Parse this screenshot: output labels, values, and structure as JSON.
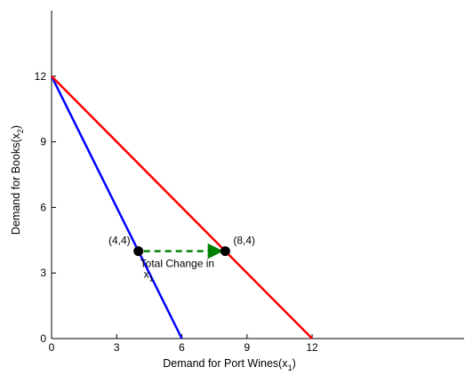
{
  "chart_data": {
    "type": "line",
    "xlabel": "Demand for Port Wines(x",
    "xlabel_sub": "1",
    "xlabel_end": ")",
    "ylabel": "Demand for Books(x",
    "ylabel_sub": "2",
    "ylabel_end": ")",
    "xlim": [
      0,
      19
    ],
    "ylim": [
      0,
      15
    ],
    "xticks": [
      0,
      3,
      6,
      9,
      12
    ],
    "yticks": [
      0,
      3,
      6,
      9,
      12
    ],
    "grid": false,
    "series": [
      {
        "color": "#0000ff",
        "x": [
          0,
          6
        ],
        "y": [
          12,
          0
        ]
      },
      {
        "color": "#ff0000",
        "x": [
          0,
          12
        ],
        "y": [
          12,
          0
        ]
      }
    ],
    "points": [
      {
        "label": "(4,4)",
        "x": 4,
        "y": 4
      },
      {
        "label": "(8,4)",
        "x": 8,
        "y": 4
      }
    ],
    "arrow": {
      "from": [
        4,
        4
      ],
      "to": [
        8,
        4
      ],
      "color": "#008000",
      "style": "dashed",
      "label_line1": "Total Change in",
      "label_line2": "x",
      "label_line2_sub": "1"
    }
  }
}
